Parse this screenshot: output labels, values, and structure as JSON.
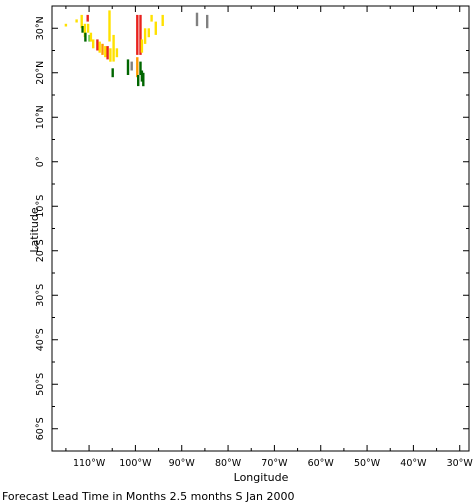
{
  "chart_data": {
    "type": "heatmap",
    "xlabel": "Longitude",
    "ylabel": "Latitude",
    "caption": "Forecast Lead Time in Months 2.5 months S Jan 2000",
    "xlim": [
      -118,
      -28
    ],
    "ylim": [
      -65,
      35
    ],
    "x_ticks": [
      {
        "value": -110,
        "label": "110°W"
      },
      {
        "value": -100,
        "label": "100°W"
      },
      {
        "value": -90,
        "label": "90°W"
      },
      {
        "value": -80,
        "label": "80°W"
      },
      {
        "value": -70,
        "label": "70°W"
      },
      {
        "value": -60,
        "label": "60°W"
      },
      {
        "value": -50,
        "label": "50°W"
      },
      {
        "value": -40,
        "label": "40°W"
      },
      {
        "value": -30,
        "label": "30°W"
      }
    ],
    "y_ticks": [
      {
        "value": 30,
        "label": "30°N"
      },
      {
        "value": 20,
        "label": "20°N"
      },
      {
        "value": 10,
        "label": "10°N"
      },
      {
        "value": 0,
        "label": "0°"
      },
      {
        "value": -10,
        "label": "10°S"
      },
      {
        "value": -20,
        "label": "20°S"
      },
      {
        "value": -30,
        "label": "30°S"
      },
      {
        "value": -40,
        "label": "40°S"
      },
      {
        "value": -50,
        "label": "50°S"
      },
      {
        "value": -60,
        "label": "60°S"
      }
    ],
    "colors": {
      "yellow": "#ffe100",
      "orange": "#ff9900",
      "red": "#e8221e",
      "green": "#006600",
      "lightgreen": "#55cc55",
      "gray": "#808080"
    },
    "cells": [
      {
        "lon": -115.0,
        "lat": 31.0,
        "lat2": 30.4,
        "color": "yellow"
      },
      {
        "lon": -112.7,
        "lat": 32.0,
        "lat2": 31.3,
        "color": "yellow"
      },
      {
        "lon": -111.6,
        "lat": 33.0,
        "lat2": 30.0,
        "color": "yellow"
      },
      {
        "lon": -111.4,
        "lat": 30.5,
        "lat2": 29.0,
        "color": "green"
      },
      {
        "lon": -110.9,
        "lat": 31.0,
        "lat2": 28.0,
        "color": "yellow"
      },
      {
        "lon": -110.8,
        "lat": 29.0,
        "lat2": 27.0,
        "color": "green"
      },
      {
        "lon": -110.3,
        "lat": 33.0,
        "lat2": 31.5,
        "color": "red"
      },
      {
        "lon": -110.2,
        "lat": 31.0,
        "lat2": 29.0,
        "color": "yellow"
      },
      {
        "lon": -109.9,
        "lat": 28.5,
        "lat2": 27.0,
        "color": "lightgreen"
      },
      {
        "lon": -109.6,
        "lat": 29.0,
        "lat2": 27.0,
        "color": "yellow"
      },
      {
        "lon": -109.1,
        "lat": 27.5,
        "lat2": 25.5,
        "color": "yellow"
      },
      {
        "lon": -108.2,
        "lat": 27.5,
        "lat2": 25.0,
        "color": "red"
      },
      {
        "lon": -107.7,
        "lat": 27.0,
        "lat2": 24.5,
        "color": "yellow"
      },
      {
        "lon": -107.1,
        "lat": 26.5,
        "lat2": 24.0,
        "color": "orange"
      },
      {
        "lon": -106.5,
        "lat": 26.0,
        "lat2": 23.5,
        "color": "yellow"
      },
      {
        "lon": -106.0,
        "lat": 26.0,
        "lat2": 23.0,
        "color": "red"
      },
      {
        "lon": -105.6,
        "lat": 34.0,
        "lat2": 27.0,
        "color": "yellow"
      },
      {
        "lon": -105.4,
        "lat": 25.5,
        "lat2": 22.5,
        "color": "yellow"
      },
      {
        "lon": -104.9,
        "lat": 21.0,
        "lat2": 19.0,
        "color": "green"
      },
      {
        "lon": -104.7,
        "lat": 28.5,
        "lat2": 22.5,
        "color": "yellow"
      },
      {
        "lon": -104.0,
        "lat": 25.5,
        "lat2": 23.5,
        "color": "yellow"
      },
      {
        "lon": -101.6,
        "lat": 23.0,
        "lat2": 19.5,
        "color": "green"
      },
      {
        "lon": -100.8,
        "lat": 22.5,
        "lat2": 20.5,
        "color": "gray"
      },
      {
        "lon": -99.6,
        "lat": 33.0,
        "lat2": 24.0,
        "color": "red"
      },
      {
        "lon": -99.6,
        "lat": 23.5,
        "lat2": 19.0,
        "color": "orange"
      },
      {
        "lon": -99.4,
        "lat": 19.5,
        "lat2": 17.0,
        "color": "green"
      },
      {
        "lon": -98.9,
        "lat": 33.0,
        "lat2": 24.0,
        "color": "red"
      },
      {
        "lon": -98.9,
        "lat": 22.5,
        "lat2": 19.5,
        "color": "green"
      },
      {
        "lon": -98.6,
        "lat": 20.5,
        "lat2": 18.0,
        "color": "green"
      },
      {
        "lon": -98.6,
        "lat": 27.5,
        "lat2": 24.5,
        "color": "yellow"
      },
      {
        "lon": -98.3,
        "lat": 20.0,
        "lat2": 17.0,
        "color": "green"
      },
      {
        "lon": -97.9,
        "lat": 30.0,
        "lat2": 26.5,
        "color": "yellow"
      },
      {
        "lon": -97.1,
        "lat": 30.0,
        "lat2": 28.0,
        "color": "yellow"
      },
      {
        "lon": -96.5,
        "lat": 33.0,
        "lat2": 31.5,
        "color": "yellow"
      },
      {
        "lon": -95.6,
        "lat": 31.5,
        "lat2": 28.5,
        "color": "yellow"
      },
      {
        "lon": -94.1,
        "lat": 33.0,
        "lat2": 30.5,
        "color": "yellow"
      },
      {
        "lon": -86.7,
        "lat": 33.5,
        "lat2": 30.5,
        "color": "gray"
      },
      {
        "lon": -84.5,
        "lat": 33.0,
        "lat2": 30.0,
        "color": "gray"
      }
    ]
  }
}
